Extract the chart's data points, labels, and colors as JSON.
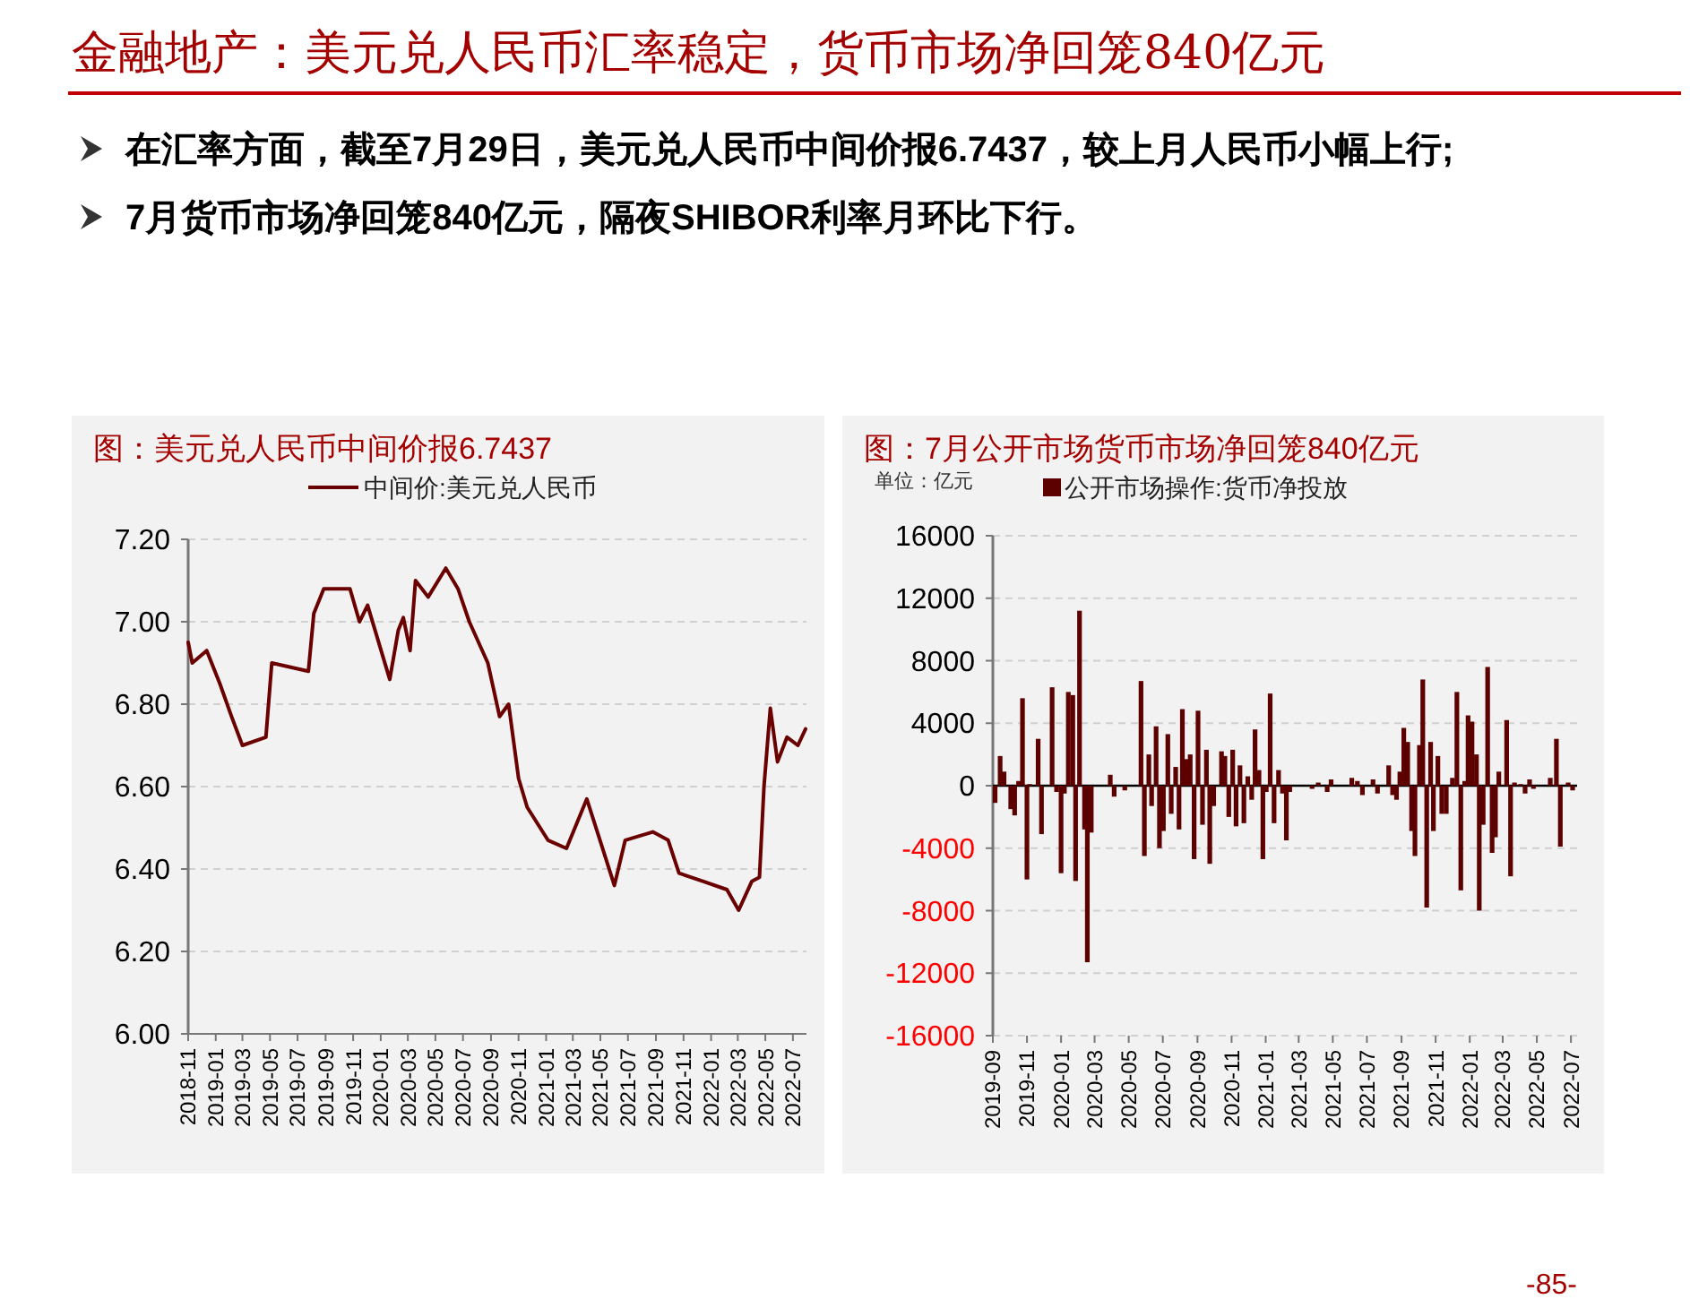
{
  "chart_data": [
    {
      "type": "other",
      "title": "金融地产：美元兑人民币汇率稳定，货币市场净回笼840亿元",
      "annotations": [
        "在汇率方面，截至7月29日，美元兑人民币中间价报6.7437，较上月人民币小幅上行;",
        "7月货币市场净回笼840亿元，隔夜SHIBOR利率月环比下行。",
        "-85-"
      ]
    },
    {
      "type": "line",
      "title": "图：美元兑人民币中间价报6.7437",
      "legend": "top",
      "grid": "y",
      "x": [
        "2018-11-01",
        "2018-11-10",
        "2018-12-12",
        "2019-01-10",
        "2019-02-05",
        "2019-03-01",
        "2019-04-22",
        "2019-05-05",
        "2019-07-25",
        "2019-08-06",
        "2019-08-28",
        "2019-10-25",
        "2019-11-15",
        "2019-12-03",
        "2020-01-21",
        "2020-02-09",
        "2020-02-20",
        "2020-03-06",
        "2020-03-18",
        "2020-04-15",
        "2020-05-24",
        "2020-06-20",
        "2020-07-15",
        "2020-08-25",
        "2020-09-20",
        "2020-10-10",
        "2020-11-01",
        "2020-11-20",
        "2021-01-05",
        "2021-02-15",
        "2021-04-01",
        "2021-05-03",
        "2021-06-01",
        "2021-06-25",
        "2021-08-25",
        "2021-09-28",
        "2021-10-22",
        "2021-12-15",
        "2022-02-05",
        "2022-03-03",
        "2022-04-01",
        "2022-04-18",
        "2022-04-28",
        "2022-05-12",
        "2022-05-28",
        "2022-06-18",
        "2022-07-12",
        "2022-07-29"
      ],
      "series": [
        {
          "name": "中间价:美元兑人民币",
          "color": "#6b0000",
          "values": [
            6.95,
            6.9,
            6.93,
            6.85,
            6.77,
            6.7,
            6.72,
            6.9,
            6.88,
            7.02,
            7.08,
            7.08,
            7.0,
            7.04,
            6.86,
            6.98,
            7.01,
            6.93,
            7.1,
            7.06,
            7.13,
            7.08,
            7.0,
            6.9,
            6.77,
            6.8,
            6.62,
            6.55,
            6.47,
            6.45,
            6.57,
            6.46,
            6.36,
            6.47,
            6.49,
            6.47,
            6.39,
            6.37,
            6.35,
            6.3,
            6.37,
            6.38,
            6.6,
            6.79,
            6.66,
            6.72,
            6.7,
            6.74
          ]
        }
      ],
      "xlim": [
        "2018-11-01",
        "2022-07-31"
      ],
      "xticks": [
        "2018-11",
        "2019-01",
        "2019-03",
        "2019-05",
        "2019-07",
        "2019-09",
        "2019-11",
        "2020-01",
        "2020-03",
        "2020-05",
        "2020-07",
        "2020-09",
        "2020-11",
        "2021-01",
        "2021-03",
        "2021-05",
        "2021-07",
        "2021-09",
        "2021-11",
        "2022-01",
        "2022-03",
        "2022-05",
        "2022-07"
      ],
      "ylim": [
        6.0,
        7.2
      ],
      "yticks": [
        {
          "value": 6.0,
          "label": "6.00"
        },
        {
          "value": 6.2,
          "label": "6.20"
        },
        {
          "value": 6.4,
          "label": "6.40"
        },
        {
          "value": 6.6,
          "label": "6.60"
        },
        {
          "value": 6.8,
          "label": "6.80"
        },
        {
          "value": 7.0,
          "label": "7.00"
        },
        {
          "value": 7.2,
          "label": "7.20"
        }
      ]
    },
    {
      "type": "bar",
      "title": "图：7月公开市场货币市场净回笼840亿元",
      "annotations": [
        "单位：亿元"
      ],
      "legend": "top",
      "grid": "y",
      "x": [
        "2019-09-05",
        "2019-09-14",
        "2019-09-21",
        "2019-10-03",
        "2019-10-10",
        "2019-10-17",
        "2019-10-24",
        "2019-11-01",
        "2019-11-06",
        "2019-11-21",
        "2019-11-27",
        "2019-12-16",
        "2019-12-24",
        "2020-01-01",
        "2020-01-07",
        "2020-01-14",
        "2020-01-22",
        "2020-01-27",
        "2020-02-03",
        "2020-02-12",
        "2020-02-17",
        "2020-02-24",
        "2020-03-29",
        "2020-04-05",
        "2020-04-24",
        "2020-05-23",
        "2020-05-29",
        "2020-06-06",
        "2020-06-11",
        "2020-06-19",
        "2020-06-25",
        "2020-07-02",
        "2020-07-10",
        "2020-07-16",
        "2020-07-24",
        "2020-07-30",
        "2020-08-05",
        "2020-08-12",
        "2020-08-19",
        "2020-08-26",
        "2020-09-02",
        "2020-09-10",
        "2020-09-17",
        "2020-09-23",
        "2020-09-30",
        "2020-10-14",
        "2020-10-20",
        "2020-10-27",
        "2020-11-03",
        "2020-11-09",
        "2020-11-16",
        "2020-11-23",
        "2020-11-30",
        "2020-12-07",
        "2020-12-13",
        "2020-12-20",
        "2020-12-27",
        "2021-01-02",
        "2021-01-09",
        "2021-01-16",
        "2021-01-24",
        "2021-01-31",
        "2021-02-07",
        "2021-02-13",
        "2021-03-25",
        "2021-04-05",
        "2021-04-21",
        "2021-04-28",
        "2021-06-04",
        "2021-06-14",
        "2021-06-23",
        "2021-07-12",
        "2021-07-20",
        "2021-08-09",
        "2021-08-16",
        "2021-08-23",
        "2021-08-29",
        "2021-09-05",
        "2021-09-12",
        "2021-09-19",
        "2021-09-25",
        "2021-10-03",
        "2021-10-09",
        "2021-10-16",
        "2021-10-23",
        "2021-10-28",
        "2021-11-05",
        "2021-11-12",
        "2021-11-20",
        "2021-12-01",
        "2021-12-09",
        "2021-12-16",
        "2021-12-23",
        "2021-12-29",
        "2022-01-05",
        "2022-01-13",
        "2022-01-18",
        "2022-01-25",
        "2022-02-02",
        "2022-02-10",
        "2022-02-16",
        "2022-02-22",
        "2022-03-08",
        "2022-03-15",
        "2022-03-22",
        "2022-04-02",
        "2022-04-10",
        "2022-04-18",
        "2022-04-25",
        "2022-05-25",
        "2022-06-05",
        "2022-06-12",
        "2022-06-26",
        "2022-07-04"
      ],
      "series": [
        {
          "name": "公开市场操作:货币净投放",
          "color": "#5c0000",
          "values": [
            -1100,
            1900,
            900,
            -1500,
            -1900,
            300,
            5600,
            -6000,
            100,
            3000,
            -3100,
            6300,
            -400,
            -5600,
            -500,
            6000,
            5800,
            -6100,
            11200,
            -2800,
            -11300,
            -3000,
            700,
            -700,
            -300,
            6700,
            -4500,
            2000,
            -1300,
            3800,
            -4000,
            -2900,
            3300,
            -1800,
            1200,
            -2800,
            4900,
            1700,
            2000,
            -4700,
            4800,
            -2500,
            2300,
            -5000,
            -1300,
            2200,
            1900,
            -2000,
            2300,
            -2600,
            1300,
            -2400,
            600,
            -900,
            3600,
            1000,
            -4700,
            -400,
            5900,
            -2400,
            1000,
            -500,
            -3500,
            -400,
            -200,
            200,
            -400,
            400,
            500,
            300,
            -600,
            400,
            -500,
            1300,
            -600,
            -900,
            900,
            3700,
            2800,
            -2900,
            -4500,
            2600,
            6800,
            -7800,
            2800,
            -2900,
            1900,
            -1800,
            -1800,
            500,
            6000,
            -6700,
            300,
            4500,
            4100,
            2000,
            -8000,
            -2500,
            7600,
            -4300,
            -3300,
            900,
            4200,
            -5800,
            200,
            100,
            -500,
            400,
            -200,
            500,
            3000,
            -3900,
            200,
            -300
          ]
        }
      ],
      "xlim": [
        "2019-09-01",
        "2022-07-12"
      ],
      "xticks": [
        "2019-09",
        "2019-11",
        "2020-01",
        "2020-03",
        "2020-05",
        "2020-07",
        "2020-09",
        "2020-11",
        "2021-01",
        "2021-03",
        "2021-05",
        "2021-07",
        "2021-09",
        "2021-11",
        "2022-01",
        "2022-03",
        "2022-05",
        "2022-07"
      ],
      "ylim": [
        -16000,
        16000
      ],
      "yticks": [
        -16000,
        -12000,
        -8000,
        -4000,
        0,
        4000,
        8000,
        12000,
        16000
      ]
    }
  ]
}
